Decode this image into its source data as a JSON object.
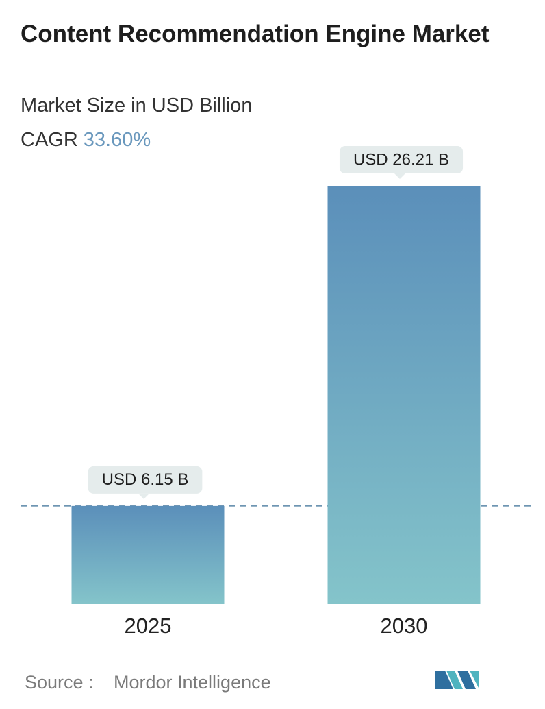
{
  "chart_data": {
    "type": "bar",
    "title": "Content Recommendation Engine Market",
    "subtitle": "Market Size in USD Billion",
    "cagr_label": "CAGR",
    "cagr": "33.60%",
    "categories": [
      "2025",
      "2030"
    ],
    "values": [
      6.15,
      26.21
    ],
    "value_labels": [
      "USD 6.15 B",
      "USD 26.21 B"
    ],
    "ylim": [
      0,
      26.21
    ],
    "gradient": [
      "#5b8fba",
      "#84c4ca"
    ],
    "reference_line": true,
    "source_label": "Source :",
    "source": "Mordor Intelligence"
  }
}
